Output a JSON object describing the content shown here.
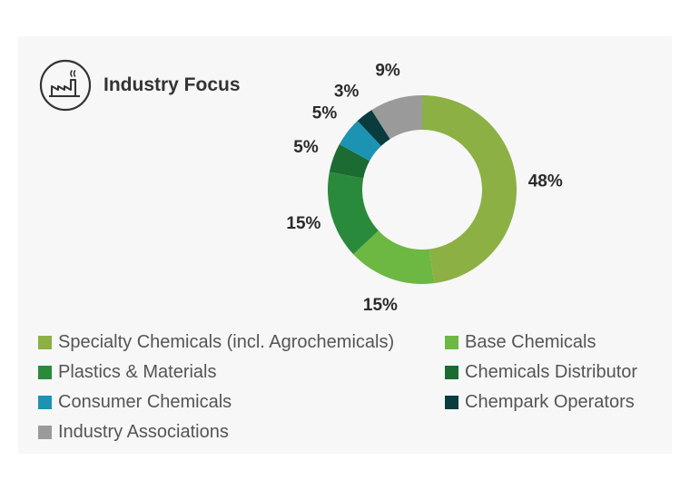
{
  "header": {
    "title": "Industry Focus",
    "icon": "factory-icon"
  },
  "chart_data": {
    "type": "donut",
    "title": "Industry Focus",
    "slices": [
      {
        "name": "Specialty Chemicals (incl. Agrochemicals)",
        "value": 48,
        "label": "48%",
        "color": "#8cb043"
      },
      {
        "name": "Base Chemicals",
        "value": 15,
        "label": "15%",
        "color": "#6db843"
      },
      {
        "name": "Plastics & Materials",
        "value": 15,
        "label": "15%",
        "color": "#2a8a3c"
      },
      {
        "name": "Chemicals Distributor",
        "value": 5,
        "label": "5%",
        "color": "#1c6b32"
      },
      {
        "name": "Consumer Chemicals",
        "value": 5,
        "label": "5%",
        "color": "#1c93b3"
      },
      {
        "name": "Chempark Operators",
        "value": 3,
        "label": "3%",
        "color": "#0a3b3e"
      },
      {
        "name": "Industry Associations",
        "value": 9,
        "label": "9%",
        "color": "#9a9a9a"
      }
    ],
    "legend": [
      {
        "label": "Specialty Chemicals (incl. Agrochemicals)",
        "color": "#8cb043"
      },
      {
        "label": "Base Chemicals",
        "color": "#6db843"
      },
      {
        "label": "Plastics & Materials",
        "color": "#2a8a3c"
      },
      {
        "label": "Chemicals Distributor",
        "color": "#1c6b32"
      },
      {
        "label": "Consumer Chemicals",
        "color": "#1c93b3"
      },
      {
        "label": "Chempark Operators",
        "color": "#0a3b3e"
      },
      {
        "label": "Industry Associations",
        "color": "#9a9a9a"
      }
    ]
  }
}
